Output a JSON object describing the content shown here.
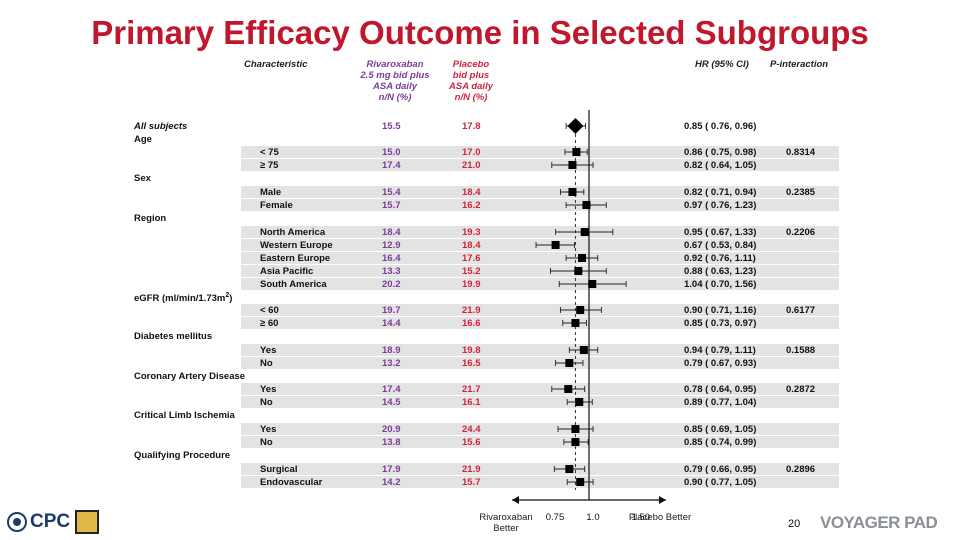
{
  "title": "Primary Efficacy Outcome in Selected Subgroups",
  "headers": {
    "characteristic": "Characteristic",
    "rivaroxaban": "Rivaroxaban\n2.5 mg bid plus\nASA daily\nn/N (%)",
    "placebo": "Placebo\nbid plus\nASA daily\nn/N (%)",
    "hr": "HR (95% CI)",
    "pint": "P-interaction"
  },
  "rows": [
    {
      "label": "All subjects",
      "italic": true,
      "indent": false,
      "riva": "15.5",
      "plac": "17.8",
      "hr_text": "0.85 ( 0.76, 0.96)",
      "p": ""
    },
    {
      "label": "Age",
      "indent": false,
      "header": true
    },
    {
      "label": "< 75",
      "indent": true,
      "riva": "15.0",
      "plac": "17.0",
      "hr_text": "0.86 ( 0.75, 0.98)",
      "p": "0.8314"
    },
    {
      "label": "≥ 75",
      "indent": true,
      "riva": "17.4",
      "plac": "21.0",
      "hr_text": "0.82 ( 0.64, 1.05)",
      "p": ""
    },
    {
      "label": "Sex",
      "indent": false,
      "header": true
    },
    {
      "label": "Male",
      "indent": true,
      "riva": "15.4",
      "plac": "18.4",
      "hr_text": "0.82 ( 0.71, 0.94)",
      "p": "0.2385"
    },
    {
      "label": "Female",
      "indent": true,
      "riva": "15.7",
      "plac": "16.2",
      "hr_text": "0.97 ( 0.76, 1.23)",
      "p": ""
    },
    {
      "label": "Region",
      "indent": false,
      "header": true
    },
    {
      "label": "North America",
      "indent": true,
      "riva": "18.4",
      "plac": "19.3",
      "hr_text": "0.95 ( 0.67, 1.33)",
      "p": "0.2206"
    },
    {
      "label": "Western Europe",
      "indent": true,
      "riva": "12.9",
      "plac": "18.4",
      "hr_text": "0.67 ( 0.53, 0.84)",
      "p": ""
    },
    {
      "label": "Eastern Europe",
      "indent": true,
      "riva": "16.4",
      "plac": "17.6",
      "hr_text": "0.92 ( 0.76, 1.11)",
      "p": ""
    },
    {
      "label": "Asia Pacific",
      "indent": true,
      "riva": "13.3",
      "plac": "15.2",
      "hr_text": "0.88 ( 0.63, 1.23)",
      "p": ""
    },
    {
      "label": "South America",
      "indent": true,
      "riva": "20.2",
      "plac": "19.9",
      "hr_text": "1.04 ( 0.70, 1.56)",
      "p": ""
    },
    {
      "label": "eGFR (ml/min/1.73m",
      "sup": "2",
      "label_end": ")",
      "indent": false,
      "header": true
    },
    {
      "label": "< 60",
      "indent": true,
      "riva": "19.7",
      "plac": "21.9",
      "hr_text": "0.90 ( 0.71, 1.16)",
      "p": "0.6177"
    },
    {
      "label": "≥ 60",
      "indent": true,
      "riva": "14.4",
      "plac": "16.6",
      "hr_text": "0.85 ( 0.73, 0.97)",
      "p": ""
    },
    {
      "label": "Diabetes mellitus",
      "indent": false,
      "header": true
    },
    {
      "label": "Yes",
      "indent": true,
      "riva": "18.9",
      "plac": "19.8",
      "hr_text": "0.94 ( 0.79, 1.11)",
      "p": "0.1588"
    },
    {
      "label": "No",
      "indent": true,
      "riva": "13.2",
      "plac": "16.5",
      "hr_text": "0.79 ( 0.67, 0.93)",
      "p": ""
    },
    {
      "label": "Coronary Artery Disease",
      "indent": false,
      "header": true
    },
    {
      "label": "Yes",
      "indent": true,
      "riva": "17.4",
      "plac": "21.7",
      "hr_text": "0.78 ( 0.64, 0.95)",
      "p": "0.2872"
    },
    {
      "label": "No",
      "indent": true,
      "riva": "14.5",
      "plac": "16.1",
      "hr_text": "0.89 ( 0.77, 1.04)",
      "p": ""
    },
    {
      "label": "Critical Limb Ischemia",
      "indent": false,
      "header": true
    },
    {
      "label": "Yes",
      "indent": true,
      "riva": "20.9",
      "plac": "24.4",
      "hr_text": "0.85 ( 0.69, 1.05)",
      "p": ""
    },
    {
      "label": "No",
      "indent": true,
      "riva": "13.8",
      "plac": "15.6",
      "hr_text": "0.85 ( 0.74, 0.99)",
      "p": ""
    },
    {
      "label": "Qualifying  Procedure",
      "indent": false,
      "header": true
    },
    {
      "label": "Surgical",
      "indent": true,
      "riva": "17.9",
      "plac": "21.9",
      "hr_text": "0.79 ( 0.66, 0.95)",
      "p": "0.2896"
    },
    {
      "label": "Endovascular",
      "indent": true,
      "riva": "14.2",
      "plac": "15.7",
      "hr_text": "0.90 ( 0.77, 1.05)",
      "p": ""
    }
  ],
  "chart_data": {
    "type": "forest",
    "title": "Primary Efficacy Outcome in Selected Subgroups",
    "x_ticks": [
      "0.75",
      "1.0",
      "1.50"
    ],
    "x_tick_values": [
      0.75,
      1.0,
      1.5
    ],
    "left_label": "Rivaroxaban\nBetter",
    "right_label": "Placebo\nBetter",
    "reference_line": 1.0,
    "points": [
      {
        "label": "All subjects",
        "hr": 0.85,
        "lo": 0.76,
        "hi": 0.96,
        "summary": true
      },
      {
        "label": "< 75",
        "hr": 0.86,
        "lo": 0.75,
        "hi": 0.98
      },
      {
        "label": "≥ 75",
        "hr": 0.82,
        "lo": 0.64,
        "hi": 1.05
      },
      {
        "label": "Male",
        "hr": 0.82,
        "lo": 0.71,
        "hi": 0.94
      },
      {
        "label": "Female",
        "hr": 0.97,
        "lo": 0.76,
        "hi": 1.23
      },
      {
        "label": "North America",
        "hr": 0.95,
        "lo": 0.67,
        "hi": 1.33
      },
      {
        "label": "Western Europe",
        "hr": 0.67,
        "lo": 0.53,
        "hi": 0.84
      },
      {
        "label": "Eastern Europe",
        "hr": 0.92,
        "lo": 0.76,
        "hi": 1.11
      },
      {
        "label": "Asia Pacific",
        "hr": 0.88,
        "lo": 0.63,
        "hi": 1.23
      },
      {
        "label": "South America",
        "hr": 1.04,
        "lo": 0.7,
        "hi": 1.56
      },
      {
        "label": "< 60",
        "hr": 0.9,
        "lo": 0.71,
        "hi": 1.16
      },
      {
        "label": "≥ 60",
        "hr": 0.85,
        "lo": 0.73,
        "hi": 0.97
      },
      {
        "label": "Diabetes Yes",
        "hr": 0.94,
        "lo": 0.79,
        "hi": 1.11
      },
      {
        "label": "Diabetes No",
        "hr": 0.79,
        "lo": 0.67,
        "hi": 0.93
      },
      {
        "label": "CAD Yes",
        "hr": 0.78,
        "lo": 0.64,
        "hi": 0.95
      },
      {
        "label": "CAD No",
        "hr": 0.89,
        "lo": 0.77,
        "hi": 1.04
      },
      {
        "label": "CLI Yes",
        "hr": 0.85,
        "lo": 0.69,
        "hi": 1.05
      },
      {
        "label": "CLI No",
        "hr": 0.85,
        "lo": 0.74,
        "hi": 0.99
      },
      {
        "label": "Surgical",
        "hr": 0.79,
        "lo": 0.66,
        "hi": 0.95
      },
      {
        "label": "Endovascular",
        "hr": 0.9,
        "lo": 0.77,
        "hi": 1.05
      }
    ]
  },
  "footer": {
    "page_number": "20",
    "logo_left": "CPC",
    "logo_right": "VOYAGER PAD"
  }
}
